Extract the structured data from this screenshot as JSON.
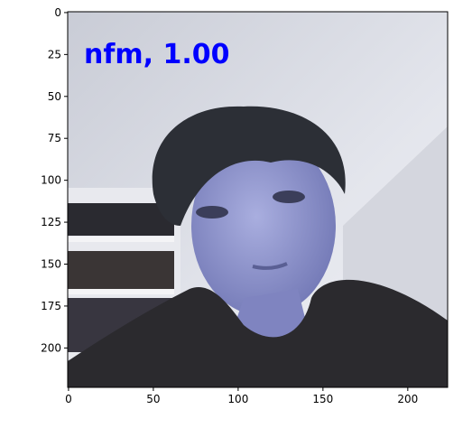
{
  "chart_data": {
    "type": "image",
    "annotation": "nfm, 1.00",
    "annotation_color": "#0000ff",
    "xlim": [
      -0.5,
      223.5
    ],
    "ylim": [
      223.5,
      -0.5
    ],
    "xticks": [
      0,
      50,
      100,
      150,
      200
    ],
    "yticks": [
      0,
      25,
      50,
      75,
      100,
      125,
      150,
      175,
      200
    ]
  }
}
